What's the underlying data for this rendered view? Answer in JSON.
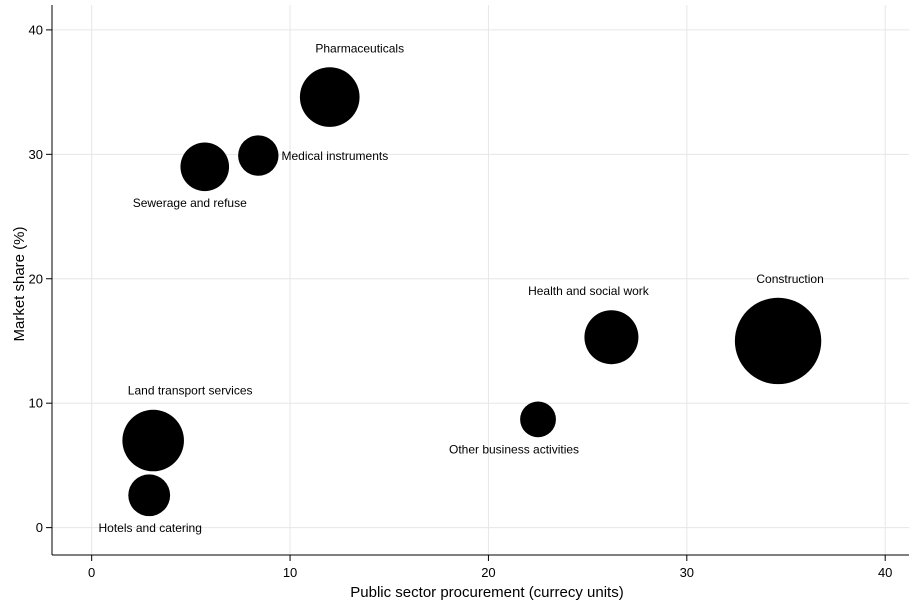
{
  "chart_data": {
    "type": "scatter",
    "title": "",
    "xlabel": "Public sector procurement (currecy units)",
    "ylabel": "Market share (%)",
    "xlim": [
      -2,
      41.2
    ],
    "ylim": [
      -2.2,
      42
    ],
    "xticks": [
      0,
      10,
      20,
      30,
      40
    ],
    "yticks": [
      0,
      10,
      20,
      30,
      40
    ],
    "grid": true,
    "bubble_color": "#000000",
    "grid_color": "#e6e6e6",
    "points": [
      {
        "label": "Pharmaceuticals",
        "x": 12.0,
        "y": 34.6,
        "size": 1.22
      },
      {
        "label": "Medical instruments",
        "x": 8.4,
        "y": 29.9,
        "size": 0.56
      },
      {
        "label": "Sewerage and refuse",
        "x": 5.7,
        "y": 29.0,
        "size": 0.81
      },
      {
        "label": "Health and social work",
        "x": 26.2,
        "y": 15.3,
        "size": 1.0
      },
      {
        "label": "Construction",
        "x": 34.6,
        "y": 15.0,
        "size": 2.56
      },
      {
        "label": "Other business activities",
        "x": 22.5,
        "y": 8.7,
        "size": 0.44
      },
      {
        "label": "Land transport services",
        "x": 3.1,
        "y": 7.0,
        "size": 1.3
      },
      {
        "label": "Hotels and catering",
        "x": 2.9,
        "y": 2.6,
        "size": 0.6
      }
    ]
  }
}
